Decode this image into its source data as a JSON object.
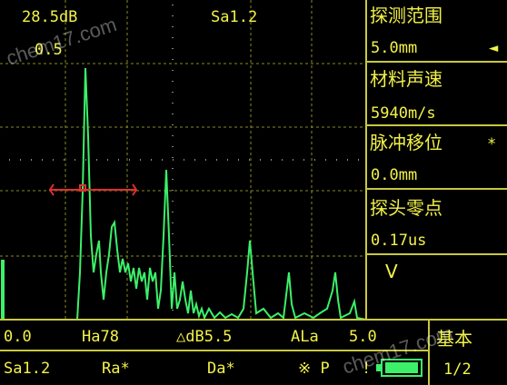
{
  "header": {
    "gain": "28.5dB",
    "step": "0.5",
    "gate_reading": "Sa1.2"
  },
  "menu": [
    {
      "label": "探测范围",
      "value": "5.0mm",
      "mark": "◄"
    },
    {
      "label": "材料声速",
      "value": "5940m/s"
    },
    {
      "label": "脉冲移位",
      "value": "0.0mm",
      "mark": "*"
    },
    {
      "label": "探头零点",
      "value": "0.17us"
    },
    {
      "label": "V"
    }
  ],
  "status": {
    "row1": [
      "0.0",
      "Ha78",
      "△dB5.5",
      "ALa",
      "5.0"
    ],
    "row2": [
      "Sa1.2",
      "Ra*",
      "Da*",
      "※ P",
      "!"
    ],
    "mode": "基本",
    "page": "1/2"
  },
  "watermark": "chem17.com"
}
